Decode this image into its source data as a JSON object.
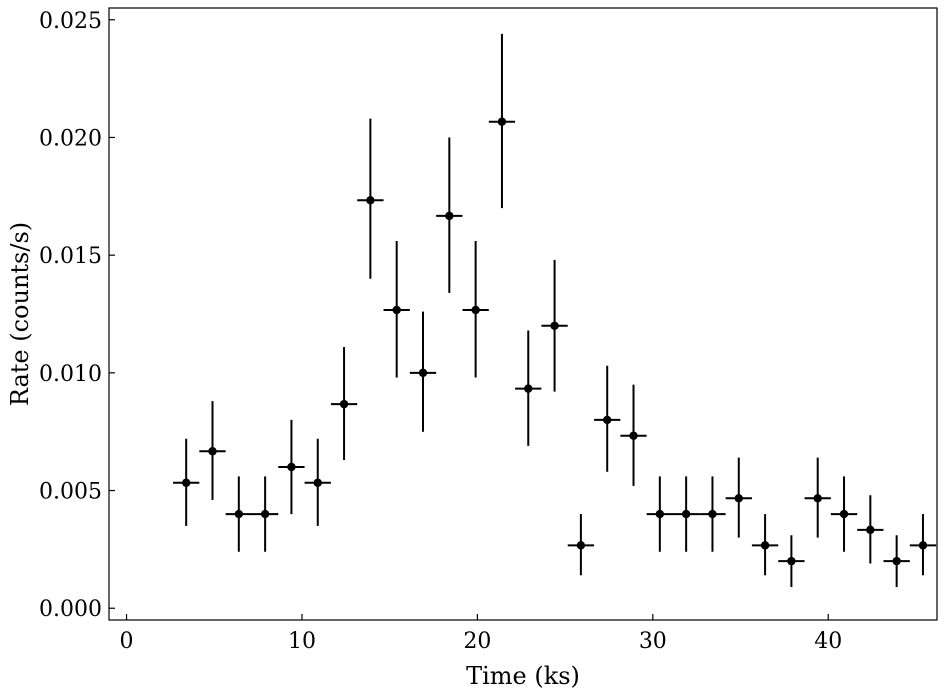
{
  "chart_data": {
    "type": "scatter",
    "title": "",
    "xlabel": "Time (ks)",
    "ylabel": "Rate (counts/s)",
    "xlim": [
      -1,
      46.2
    ],
    "ylim": [
      -0.0005,
      0.0255
    ],
    "xticks": [
      0,
      10,
      20,
      30,
      40
    ],
    "xtick_labels": [
      "0",
      "10",
      "20",
      "30",
      "40"
    ],
    "yticks": [
      0.0,
      0.005,
      0.01,
      0.015,
      0.02,
      0.025
    ],
    "ytick_labels": [
      "0.000",
      "0.005",
      "0.010",
      "0.015",
      "0.020",
      "0.025"
    ],
    "grid": false,
    "marker_color": "#000000",
    "points": [
      {
        "x": 3.4,
        "y": 0.00533,
        "xerr": 0.75,
        "ylo": 0.0035,
        "yhi": 0.0072
      },
      {
        "x": 4.9,
        "y": 0.00667,
        "xerr": 0.75,
        "ylo": 0.0046,
        "yhi": 0.0088
      },
      {
        "x": 6.4,
        "y": 0.004,
        "xerr": 0.75,
        "ylo": 0.0024,
        "yhi": 0.0056
      },
      {
        "x": 7.9,
        "y": 0.004,
        "xerr": 0.75,
        "ylo": 0.0024,
        "yhi": 0.0056
      },
      {
        "x": 9.4,
        "y": 0.006,
        "xerr": 0.75,
        "ylo": 0.004,
        "yhi": 0.008
      },
      {
        "x": 10.9,
        "y": 0.00533,
        "xerr": 0.75,
        "ylo": 0.0035,
        "yhi": 0.0072
      },
      {
        "x": 12.4,
        "y": 0.00867,
        "xerr": 0.75,
        "ylo": 0.0063,
        "yhi": 0.0111
      },
      {
        "x": 13.9,
        "y": 0.01733,
        "xerr": 0.75,
        "ylo": 0.014,
        "yhi": 0.0208
      },
      {
        "x": 15.4,
        "y": 0.01267,
        "xerr": 0.75,
        "ylo": 0.0098,
        "yhi": 0.0156
      },
      {
        "x": 16.9,
        "y": 0.01,
        "xerr": 0.75,
        "ylo": 0.0075,
        "yhi": 0.0126
      },
      {
        "x": 18.4,
        "y": 0.01667,
        "xerr": 0.75,
        "ylo": 0.0134,
        "yhi": 0.02
      },
      {
        "x": 19.9,
        "y": 0.01267,
        "xerr": 0.75,
        "ylo": 0.0098,
        "yhi": 0.0156
      },
      {
        "x": 21.4,
        "y": 0.02067,
        "xerr": 0.75,
        "ylo": 0.017,
        "yhi": 0.0244
      },
      {
        "x": 22.9,
        "y": 0.00933,
        "xerr": 0.75,
        "ylo": 0.0069,
        "yhi": 0.0118
      },
      {
        "x": 24.4,
        "y": 0.012,
        "xerr": 0.75,
        "ylo": 0.0092,
        "yhi": 0.0148
      },
      {
        "x": 25.9,
        "y": 0.00267,
        "xerr": 0.75,
        "ylo": 0.0014,
        "yhi": 0.004
      },
      {
        "x": 27.4,
        "y": 0.008,
        "xerr": 0.75,
        "ylo": 0.0058,
        "yhi": 0.0103
      },
      {
        "x": 28.9,
        "y": 0.00733,
        "xerr": 0.75,
        "ylo": 0.0052,
        "yhi": 0.0095
      },
      {
        "x": 30.4,
        "y": 0.004,
        "xerr": 0.75,
        "ylo": 0.0024,
        "yhi": 0.0056
      },
      {
        "x": 31.9,
        "y": 0.004,
        "xerr": 0.75,
        "ylo": 0.0024,
        "yhi": 0.0056
      },
      {
        "x": 33.4,
        "y": 0.004,
        "xerr": 0.75,
        "ylo": 0.0024,
        "yhi": 0.0056
      },
      {
        "x": 34.9,
        "y": 0.00467,
        "xerr": 0.75,
        "ylo": 0.003,
        "yhi": 0.0064
      },
      {
        "x": 36.4,
        "y": 0.00267,
        "xerr": 0.75,
        "ylo": 0.0014,
        "yhi": 0.004
      },
      {
        "x": 37.9,
        "y": 0.002,
        "xerr": 0.75,
        "ylo": 0.0009,
        "yhi": 0.0031
      },
      {
        "x": 39.4,
        "y": 0.00467,
        "xerr": 0.75,
        "ylo": 0.003,
        "yhi": 0.0064
      },
      {
        "x": 40.9,
        "y": 0.004,
        "xerr": 0.75,
        "ylo": 0.0024,
        "yhi": 0.0056
      },
      {
        "x": 42.4,
        "y": 0.00333,
        "xerr": 0.75,
        "ylo": 0.0019,
        "yhi": 0.0048
      },
      {
        "x": 43.9,
        "y": 0.002,
        "xerr": 0.75,
        "ylo": 0.0009,
        "yhi": 0.0031
      },
      {
        "x": 45.4,
        "y": 0.00267,
        "xerr": 0.75,
        "ylo": 0.0014,
        "yhi": 0.004
      }
    ]
  }
}
